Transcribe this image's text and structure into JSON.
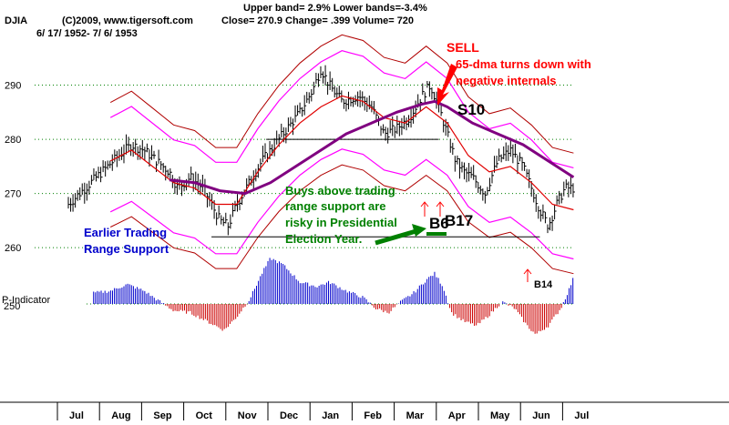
{
  "header": {
    "bands": "Upper band= 2.9%  Lower bands=-3.4%",
    "symbol": "DJIA",
    "copyright": "(C)2009, www.tigersoft.com",
    "quote": "Close=  270.9  Change= .399 Volume= 720",
    "dates": "6/ 17/ 1952-  7/ 6/ 1953"
  },
  "colors": {
    "price_bars": "#000000",
    "ma_short": "#e00000",
    "ma_long": "#800080",
    "band_outer": "#b00000",
    "band_inner": "#ff00ff",
    "grid": "#008000",
    "indicator_pos": "#0000cc",
    "indicator_neg": "#cc0000",
    "annotation_red": "#ff0000",
    "annotation_green": "#008000",
    "annotation_blue": "#0000cc"
  },
  "annotations": {
    "sell": "SELL",
    "sell_note_1": "65-dma turns down with",
    "sell_note_2": "negative internals",
    "s10": "S10",
    "earlier_1": "Earlier Trading",
    "earlier_2": "Range Support",
    "buys_1": "Buys above trading",
    "buys_2": "range support are",
    "buys_3": "risky in Presidential",
    "buys_4": "Election Year.",
    "b17": "B17",
    "b6": "B6",
    "b14": "B14",
    "indicator_label": "P-Indicator"
  },
  "chart_data": {
    "type": "line",
    "title": "",
    "xlabel": "",
    "ylabel": "",
    "ylim": [
      256.5,
      300
    ],
    "yticks": [
      290,
      280,
      270,
      260
    ],
    "indicator_tick": "250",
    "xticks": [
      "Jul",
      "Aug",
      "Sep",
      "Oct",
      "Nov",
      "Dec",
      "Jan",
      "Feb",
      "Mar",
      "Apr",
      "May",
      "Jun",
      "Jul"
    ],
    "grid": true,
    "support_lines": [
      {
        "y": 262,
        "from_month": 3.4,
        "to_month": 11.2
      },
      {
        "y": 280,
        "from_month": 4.7,
        "to_month": 8.8
      }
    ],
    "series": [
      {
        "key": "close",
        "points": [
          [
            0,
            268
          ],
          [
            0.4,
            271
          ],
          [
            0.8,
            274
          ],
          [
            1.2,
            277
          ],
          [
            1.5,
            279
          ],
          [
            1.8,
            278
          ],
          [
            2.1,
            276
          ],
          [
            2.4,
            274
          ],
          [
            2.6,
            271
          ],
          [
            2.9,
            273
          ],
          [
            3.2,
            271
          ],
          [
            3.4,
            268
          ],
          [
            3.6,
            265
          ],
          [
            3.8,
            264
          ],
          [
            4.0,
            268
          ],
          [
            4.3,
            272
          ],
          [
            4.6,
            276
          ],
          [
            4.9,
            279
          ],
          [
            5.2,
            282
          ],
          [
            5.5,
            285
          ],
          [
            5.8,
            289
          ],
          [
            6.0,
            293
          ],
          [
            6.2,
            290
          ],
          [
            6.5,
            287
          ],
          [
            6.9,
            288
          ],
          [
            7.2,
            286
          ],
          [
            7.5,
            281
          ],
          [
            7.8,
            282
          ],
          [
            8.1,
            284
          ],
          [
            8.4,
            288
          ],
          [
            8.6,
            290
          ],
          [
            8.8,
            286
          ],
          [
            9.0,
            281
          ],
          [
            9.2,
            276
          ],
          [
            9.4,
            274
          ],
          [
            9.6,
            273
          ],
          [
            9.9,
            270
          ],
          [
            10.2,
            276
          ],
          [
            10.5,
            278
          ],
          [
            10.8,
            275
          ],
          [
            11.0,
            271
          ],
          [
            11.2,
            267
          ],
          [
            11.4,
            264
          ],
          [
            11.6,
            268
          ],
          [
            11.8,
            271
          ],
          [
            12.0,
            271
          ]
        ]
      },
      {
        "key": "ma_short",
        "points": [
          [
            1.0,
            276
          ],
          [
            1.5,
            278
          ],
          [
            2.0,
            275
          ],
          [
            2.5,
            272
          ],
          [
            3.0,
            271
          ],
          [
            3.5,
            268
          ],
          [
            4.0,
            268
          ],
          [
            4.5,
            274
          ],
          [
            5.0,
            279
          ],
          [
            5.5,
            283
          ],
          [
            6.0,
            286
          ],
          [
            6.5,
            288
          ],
          [
            7.0,
            287
          ],
          [
            7.5,
            284
          ],
          [
            8.0,
            283
          ],
          [
            8.5,
            286
          ],
          [
            9.0,
            283
          ],
          [
            9.5,
            277
          ],
          [
            10.0,
            274
          ],
          [
            10.5,
            275
          ],
          [
            11.0,
            272
          ],
          [
            11.5,
            268
          ],
          [
            12.0,
            267
          ]
        ]
      },
      {
        "key": "ma_long",
        "points": [
          [
            2.4,
            272.5
          ],
          [
            3.0,
            272
          ],
          [
            3.6,
            270.5
          ],
          [
            4.2,
            270
          ],
          [
            4.8,
            272
          ],
          [
            5.4,
            275
          ],
          [
            6.0,
            278
          ],
          [
            6.6,
            281
          ],
          [
            7.2,
            283
          ],
          [
            7.8,
            285
          ],
          [
            8.4,
            286.5
          ],
          [
            8.7,
            287
          ],
          [
            9.0,
            286
          ],
          [
            9.6,
            283
          ],
          [
            10.2,
            281
          ],
          [
            10.8,
            279
          ],
          [
            11.4,
            276
          ],
          [
            12.0,
            273
          ]
        ]
      }
    ],
    "bands": {
      "upper_pct": 2.9,
      "lower_pct": -3.4
    },
    "indicator": [
      [
        0.6,
        5
      ],
      [
        1.0,
        6
      ],
      [
        1.4,
        9
      ],
      [
        1.8,
        6
      ],
      [
        2.1,
        2
      ],
      [
        2.5,
        -3
      ],
      [
        2.9,
        -4
      ],
      [
        3.3,
        -8
      ],
      [
        3.7,
        -12
      ],
      [
        4.0,
        -6
      ],
      [
        4.3,
        2
      ],
      [
        4.6,
        14
      ],
      [
        4.8,
        21
      ],
      [
        5.1,
        18
      ],
      [
        5.5,
        10
      ],
      [
        5.9,
        8
      ],
      [
        6.2,
        10
      ],
      [
        6.6,
        6
      ],
      [
        7.0,
        3
      ],
      [
        7.3,
        -2
      ],
      [
        7.6,
        -4
      ],
      [
        7.9,
        1
      ],
      [
        8.2,
        5
      ],
      [
        8.5,
        11
      ],
      [
        8.7,
        14
      ],
      [
        8.9,
        8
      ],
      [
        9.1,
        -4
      ],
      [
        9.4,
        -8
      ],
      [
        9.7,
        -10
      ],
      [
        10.0,
        -5
      ],
      [
        10.3,
        1
      ],
      [
        10.6,
        -2
      ],
      [
        10.9,
        -10
      ],
      [
        11.1,
        -14
      ],
      [
        11.4,
        -10
      ],
      [
        11.7,
        -2
      ],
      [
        11.9,
        7
      ],
      [
        12.0,
        12
      ]
    ],
    "signals": [
      {
        "label": "S10",
        "month": 8.8
      },
      {
        "label": "B17",
        "month": 8.3
      },
      {
        "label": "B6",
        "month": 8.6
      },
      {
        "label": "B14",
        "month": 10.95
      }
    ]
  }
}
